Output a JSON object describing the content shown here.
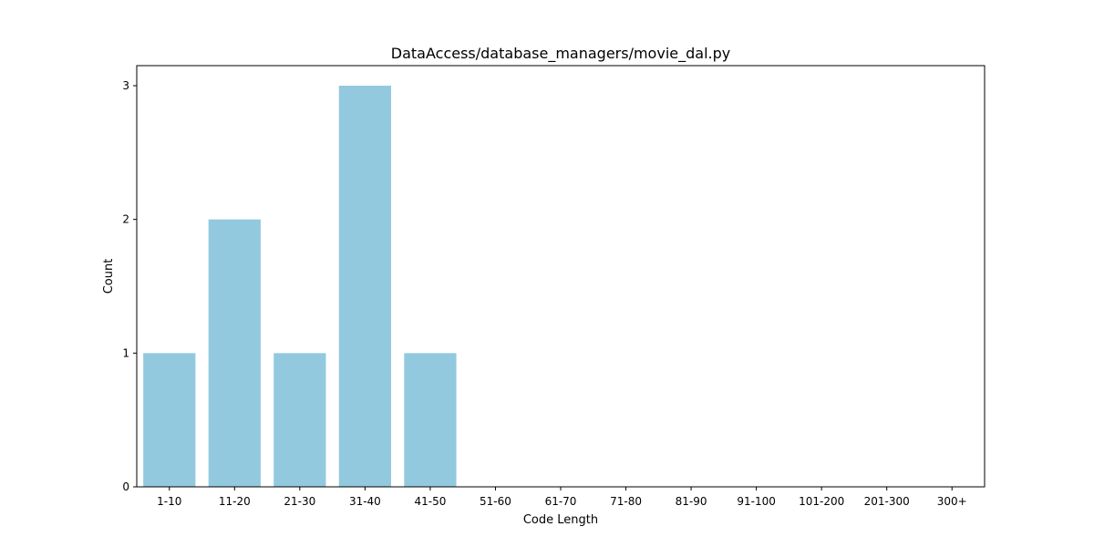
{
  "chart_data": {
    "type": "bar",
    "title": "DataAccess/database_managers/movie_dal.py",
    "xlabel": "Code Length",
    "ylabel": "Count",
    "categories": [
      "1-10",
      "11-20",
      "21-30",
      "31-40",
      "41-50",
      "51-60",
      "61-70",
      "71-80",
      "81-90",
      "91-100",
      "101-200",
      "201-300",
      "300+"
    ],
    "values": [
      1,
      2,
      1,
      3,
      1,
      0,
      0,
      0,
      0,
      0,
      0,
      0,
      0
    ],
    "ylim": [
      0,
      3.15
    ],
    "yticks": [
      0,
      1,
      2,
      3
    ],
    "bar_color": "#92C9DF",
    "grid": false
  }
}
